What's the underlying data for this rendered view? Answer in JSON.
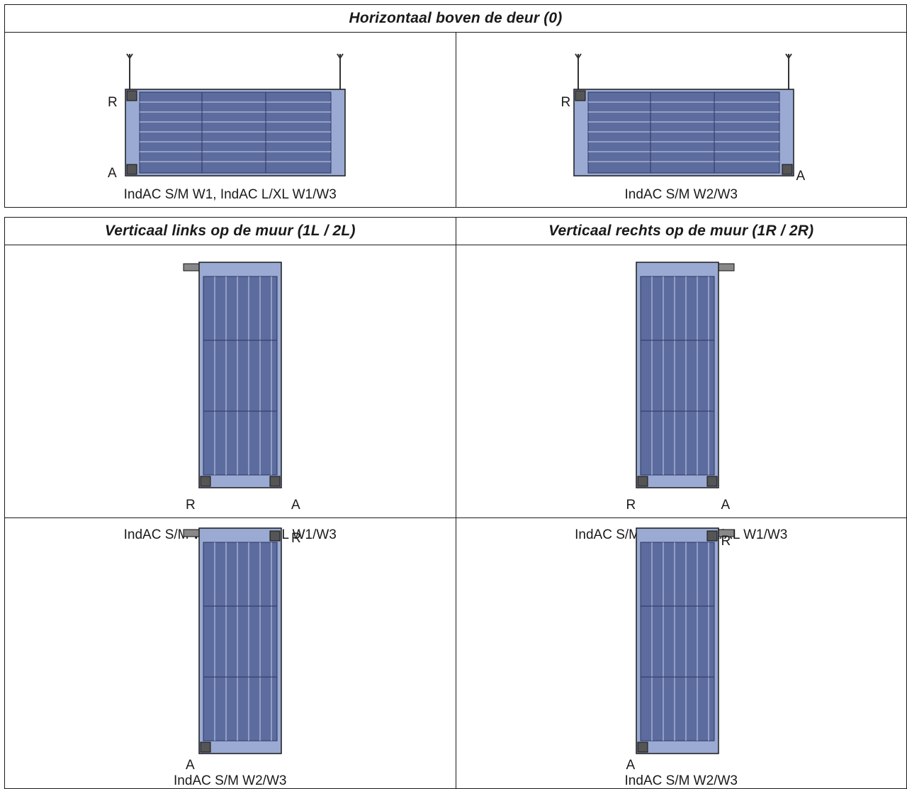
{
  "sections": {
    "horizontal": {
      "title": "Horizontaal boven de deur (0)",
      "left": {
        "caption": "IndAC S/M W1, IndAC L/XL W1/W3",
        "top_label": "R",
        "bottom_label": "A"
      },
      "right": {
        "caption": "IndAC S/M W2/W3",
        "top_label": "R",
        "bottom_label": "A"
      }
    },
    "vertical": {
      "left_title": "Verticaal links op de muur (1L / 2L)",
      "right_title": "Verticaal rechts op de muur (1R / 2R)",
      "row1": {
        "left": {
          "caption": "IndAC S/M W1, IndAC L/XL W1/W3",
          "label_1": "R",
          "label_2": "A"
        },
        "right": {
          "caption": "IndAC S/M W1, IndAC L/XL W1/W3",
          "label_1": "R",
          "label_2": "A"
        }
      },
      "row2": {
        "left": {
          "caption": "IndAC S/M W2/W3",
          "label_1": "R",
          "label_2": "A"
        },
        "right": {
          "caption": "IndAC S/M W2/W3",
          "label_1": "R",
          "label_2": "A"
        }
      }
    }
  },
  "colors": {
    "unit_fill": "#9aaad3",
    "unit_dark": "#3b4a7a",
    "outline": "#1a1a1a"
  }
}
